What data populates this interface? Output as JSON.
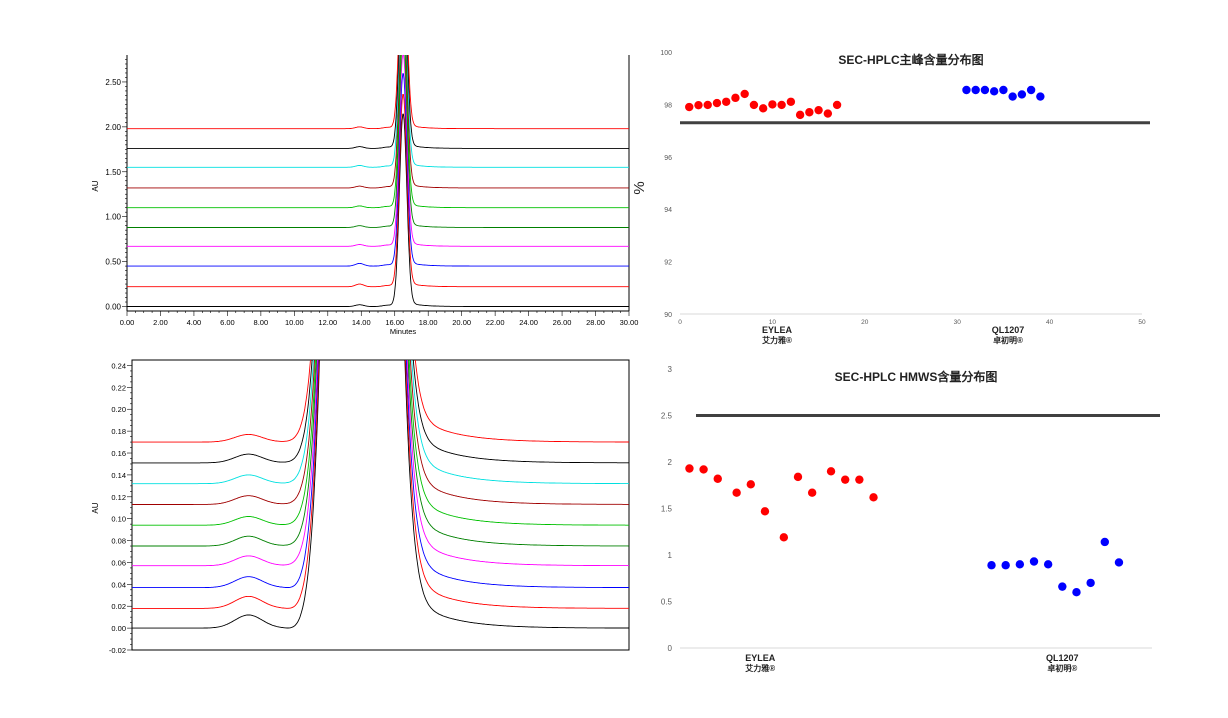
{
  "chart_data": [
    {
      "type": "line",
      "title": "",
      "xlabel": "Minutes",
      "ylabel": "AU",
      "xlim": [
        0,
        30
      ],
      "ylim": [
        -0.05,
        2.8
      ],
      "xticks": [
        "0.00",
        "2.00",
        "4.00",
        "6.00",
        "8.00",
        "10.00",
        "12.00",
        "14.00",
        "16.00",
        "18.00",
        "20.00",
        "22.00",
        "24.00",
        "26.00",
        "28.00",
        "30.00"
      ],
      "yticks": [
        "0.00",
        "0.50",
        "1.00",
        "1.50",
        "2.00",
        "2.50"
      ],
      "peak_x": 16.5,
      "main_peak_height": 2.15,
      "series": [
        {
          "color": "#000000",
          "baseline": 0.0,
          "pre_peak": 0.02
        },
        {
          "color": "#ff0000",
          "baseline": 0.22,
          "pre_peak": 0.03
        },
        {
          "color": "#0000ff",
          "baseline": 0.45,
          "pre_peak": 0.03
        },
        {
          "color": "#ff00ff",
          "baseline": 0.67,
          "pre_peak": 0.02
        },
        {
          "color": "#008000",
          "baseline": 0.88,
          "pre_peak": 0.02
        },
        {
          "color": "#00c000",
          "baseline": 1.1,
          "pre_peak": 0.02
        },
        {
          "color": "#a00000",
          "baseline": 1.32,
          "pre_peak": 0.02
        },
        {
          "color": "#00e0e0",
          "baseline": 1.55,
          "pre_peak": 0.02
        },
        {
          "color": "#000000",
          "baseline": 1.76,
          "pre_peak": 0.02
        },
        {
          "color": "#ff0000",
          "baseline": 1.98,
          "pre_peak": 0.02
        }
      ]
    },
    {
      "type": "line",
      "title": "",
      "xlabel": "",
      "ylabel": "AU",
      "xlim": [
        7.5,
        22
      ],
      "ylim": [
        -0.02,
        0.245
      ],
      "yticks": [
        "-0.02",
        "0.00",
        "0.02",
        "0.04",
        "0.06",
        "0.08",
        "0.10",
        "0.12",
        "0.14",
        "0.16",
        "0.18",
        "0.20",
        "0.22",
        "0.24"
      ],
      "hmws_peak_x": 10.9,
      "main_peak_x": 14.2,
      "series": [
        {
          "color": "#000000",
          "baseline": 0.0,
          "hmws": 0.012
        },
        {
          "color": "#ff0000",
          "baseline": 0.018,
          "hmws": 0.011
        },
        {
          "color": "#0000ff",
          "baseline": 0.037,
          "hmws": 0.01
        },
        {
          "color": "#ff00ff",
          "baseline": 0.057,
          "hmws": 0.009
        },
        {
          "color": "#008000",
          "baseline": 0.075,
          "hmws": 0.009
        },
        {
          "color": "#00c000",
          "baseline": 0.094,
          "hmws": 0.008
        },
        {
          "color": "#a00000",
          "baseline": 0.113,
          "hmws": 0.008
        },
        {
          "color": "#00e0e0",
          "baseline": 0.132,
          "hmws": 0.008
        },
        {
          "color": "#000000",
          "baseline": 0.151,
          "hmws": 0.008
        },
        {
          "color": "#ff0000",
          "baseline": 0.17,
          "hmws": 0.007
        }
      ]
    },
    {
      "type": "scatter",
      "title": "SEC-HPLC主峰含量分布图",
      "xlabel": "",
      "ylabel": "%",
      "xlim": [
        0,
        50
      ],
      "ylim": [
        90,
        100
      ],
      "xticks": [
        "0",
        "10",
        "20",
        "30",
        "40",
        "50"
      ],
      "yticks": [
        "90",
        "92",
        "94",
        "96",
        "98",
        "100"
      ],
      "reference_line": 97.3,
      "category_labels": [
        {
          "x": 10.5,
          "name": "EYLEA",
          "sub": "艾力雅®"
        },
        {
          "x": 35.5,
          "name": "QL1207",
          "sub": "卓初明®"
        }
      ],
      "series": [
        {
          "name": "EYLEA",
          "color": "#ff0000",
          "x": [
            1,
            2,
            3,
            4,
            5,
            6,
            7,
            8,
            9,
            10,
            11,
            12,
            13,
            14,
            15,
            16,
            17
          ],
          "y": [
            97.9,
            97.97,
            97.98,
            98.05,
            98.1,
            98.25,
            98.4,
            97.98,
            97.85,
            98.0,
            97.98,
            98.1,
            97.6,
            97.7,
            97.78,
            97.65,
            97.98
          ]
        },
        {
          "name": "QL1207",
          "color": "#0000ff",
          "x": [
            31,
            32,
            33,
            34,
            35,
            36,
            37,
            38,
            39
          ],
          "y": [
            98.55,
            98.55,
            98.55,
            98.5,
            98.55,
            98.3,
            98.38,
            98.55,
            98.3
          ]
        }
      ]
    },
    {
      "type": "scatter",
      "title": "SEC-HPLC HMWS含量分布图",
      "xlabel": "",
      "ylabel": "",
      "xlim": [
        0,
        50
      ],
      "ylim": [
        0,
        3
      ],
      "yticks": [
        "0",
        "0.5",
        "1",
        "1.5",
        "2",
        "2.5",
        "3"
      ],
      "reference_line": 2.5,
      "category_labels": [
        {
          "x": 8.5,
          "name": "EYLEA",
          "sub": "艾力雅®"
        },
        {
          "x": 40.5,
          "name": "QL1207",
          "sub": "卓初明®"
        }
      ],
      "series": [
        {
          "name": "EYLEA",
          "color": "#ff0000",
          "x": [
            1,
            2.5,
            4,
            6,
            7.5,
            9,
            11,
            12.5,
            14,
            16,
            17.5,
            19,
            20.5
          ],
          "y": [
            1.93,
            1.92,
            1.82,
            1.67,
            1.76,
            1.47,
            1.19,
            1.84,
            1.67,
            1.9,
            1.81,
            1.81,
            1.62
          ]
        },
        {
          "name": "QL1207",
          "color": "#0000ff",
          "x": [
            33,
            34.5,
            36,
            37.5,
            39,
            40.5,
            42,
            43.5,
            45,
            46.5
          ],
          "y": [
            0.89,
            0.89,
            0.9,
            0.93,
            0.9,
            0.66,
            0.6,
            0.7,
            1.14,
            0.92
          ]
        }
      ]
    }
  ]
}
